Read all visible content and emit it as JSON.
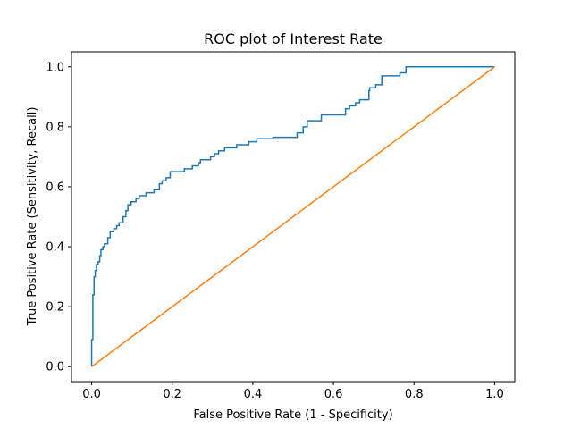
{
  "chart_data": {
    "type": "line",
    "title": "ROC plot of Interest Rate",
    "xlabel": "False Positive Rate (1 - Specificity)",
    "ylabel": "True Positive Rate (Sensitivity, Recall)",
    "xlim": [
      -0.05,
      1.05
    ],
    "ylim": [
      -0.05,
      1.05
    ],
    "xticks": [
      0.0,
      0.2,
      0.4,
      0.6,
      0.8,
      1.0
    ],
    "yticks": [
      0.0,
      0.2,
      0.4,
      0.6,
      0.8,
      1.0
    ],
    "xtick_labels": [
      "0.0",
      "0.2",
      "0.4",
      "0.6",
      "0.8",
      "1.0"
    ],
    "ytick_labels": [
      "0.0",
      "0.2",
      "0.4",
      "0.6",
      "0.8",
      "1.0"
    ],
    "grid": false,
    "legend": "none",
    "series": [
      {
        "color": "#1f77b4",
        "step": true,
        "points": [
          [
            0.0,
            0.0
          ],
          [
            0.0,
            0.09
          ],
          [
            0.003,
            0.09
          ],
          [
            0.003,
            0.24
          ],
          [
            0.006,
            0.24
          ],
          [
            0.006,
            0.3
          ],
          [
            0.009,
            0.3
          ],
          [
            0.009,
            0.32
          ],
          [
            0.012,
            0.32
          ],
          [
            0.012,
            0.34
          ],
          [
            0.016,
            0.34
          ],
          [
            0.016,
            0.35
          ],
          [
            0.02,
            0.35
          ],
          [
            0.02,
            0.37
          ],
          [
            0.023,
            0.37
          ],
          [
            0.023,
            0.39
          ],
          [
            0.028,
            0.39
          ],
          [
            0.028,
            0.4
          ],
          [
            0.032,
            0.4
          ],
          [
            0.032,
            0.41
          ],
          [
            0.04,
            0.41
          ],
          [
            0.04,
            0.43
          ],
          [
            0.046,
            0.43
          ],
          [
            0.046,
            0.45
          ],
          [
            0.055,
            0.45
          ],
          [
            0.055,
            0.46
          ],
          [
            0.062,
            0.46
          ],
          [
            0.062,
            0.47
          ],
          [
            0.068,
            0.47
          ],
          [
            0.068,
            0.48
          ],
          [
            0.078,
            0.48
          ],
          [
            0.078,
            0.5
          ],
          [
            0.085,
            0.5
          ],
          [
            0.085,
            0.52
          ],
          [
            0.09,
            0.52
          ],
          [
            0.09,
            0.54
          ],
          [
            0.098,
            0.54
          ],
          [
            0.098,
            0.55
          ],
          [
            0.11,
            0.55
          ],
          [
            0.11,
            0.56
          ],
          [
            0.118,
            0.56
          ],
          [
            0.118,
            0.57
          ],
          [
            0.135,
            0.57
          ],
          [
            0.135,
            0.58
          ],
          [
            0.155,
            0.58
          ],
          [
            0.155,
            0.59
          ],
          [
            0.168,
            0.59
          ],
          [
            0.168,
            0.61
          ],
          [
            0.175,
            0.61
          ],
          [
            0.175,
            0.62
          ],
          [
            0.185,
            0.62
          ],
          [
            0.185,
            0.63
          ],
          [
            0.195,
            0.63
          ],
          [
            0.195,
            0.65
          ],
          [
            0.23,
            0.65
          ],
          [
            0.23,
            0.66
          ],
          [
            0.25,
            0.66
          ],
          [
            0.25,
            0.67
          ],
          [
            0.265,
            0.67
          ],
          [
            0.265,
            0.68
          ],
          [
            0.27,
            0.68
          ],
          [
            0.27,
            0.69
          ],
          [
            0.295,
            0.69
          ],
          [
            0.295,
            0.7
          ],
          [
            0.305,
            0.7
          ],
          [
            0.305,
            0.71
          ],
          [
            0.315,
            0.71
          ],
          [
            0.315,
            0.72
          ],
          [
            0.33,
            0.72
          ],
          [
            0.33,
            0.73
          ],
          [
            0.36,
            0.73
          ],
          [
            0.36,
            0.74
          ],
          [
            0.39,
            0.74
          ],
          [
            0.39,
            0.75
          ],
          [
            0.41,
            0.75
          ],
          [
            0.41,
            0.76
          ],
          [
            0.45,
            0.76
          ],
          [
            0.45,
            0.765
          ],
          [
            0.51,
            0.765
          ],
          [
            0.51,
            0.78
          ],
          [
            0.525,
            0.78
          ],
          [
            0.525,
            0.8
          ],
          [
            0.535,
            0.8
          ],
          [
            0.535,
            0.82
          ],
          [
            0.57,
            0.82
          ],
          [
            0.57,
            0.84
          ],
          [
            0.63,
            0.84
          ],
          [
            0.63,
            0.86
          ],
          [
            0.64,
            0.86
          ],
          [
            0.64,
            0.87
          ],
          [
            0.655,
            0.87
          ],
          [
            0.655,
            0.88
          ],
          [
            0.665,
            0.88
          ],
          [
            0.665,
            0.89
          ],
          [
            0.688,
            0.89
          ],
          [
            0.688,
            0.92
          ],
          [
            0.69,
            0.92
          ],
          [
            0.69,
            0.93
          ],
          [
            0.705,
            0.93
          ],
          [
            0.705,
            0.94
          ],
          [
            0.72,
            0.94
          ],
          [
            0.72,
            0.97
          ],
          [
            0.765,
            0.97
          ],
          [
            0.765,
            0.98
          ],
          [
            0.78,
            0.98
          ],
          [
            0.78,
            1.0
          ],
          [
            1.0,
            1.0
          ]
        ]
      },
      {
        "color": "#ff7f0e",
        "step": false,
        "points": [
          [
            0.0,
            0.0
          ],
          [
            1.0,
            1.0
          ]
        ]
      }
    ]
  }
}
